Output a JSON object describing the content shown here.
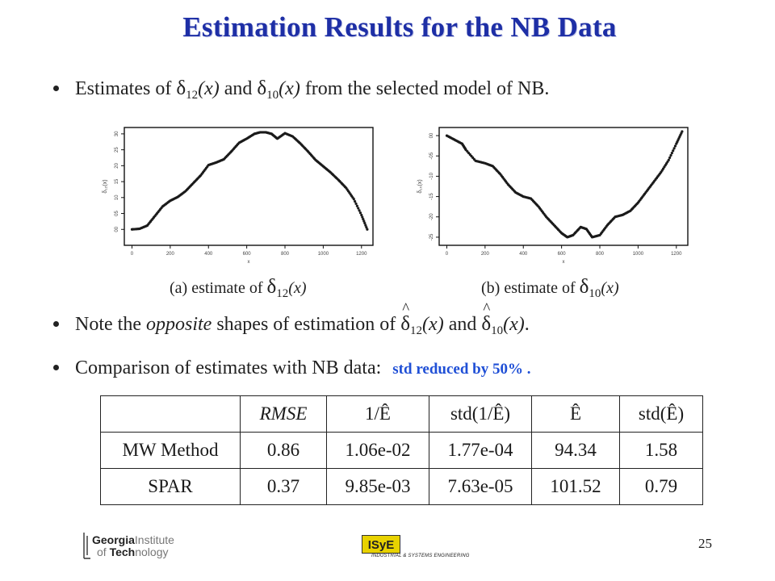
{
  "title": "Estimation Results for the NB Data",
  "bullets": {
    "b1": {
      "pre": "Estimates of ",
      "mid": " and ",
      "post": " from the selected model of NB."
    },
    "b2": {
      "pre": "Note the ",
      "em": "opposite",
      "mid": " shapes of estimation of ",
      "and": " and ",
      "post": "."
    },
    "b3": {
      "text": "Comparison of estimates with NB data:",
      "note": "std reduced by 50% ."
    }
  },
  "math": {
    "delta": "δ",
    "sub12": "12",
    "sub10": "10",
    "arg": "(x)"
  },
  "captions": {
    "a_prefix": "(a) estimate of ",
    "b_prefix": "(b) estimate of "
  },
  "chart_data": [
    {
      "type": "scatter",
      "title": "",
      "xlabel": "x",
      "ylabel": "δ₁₂(x)",
      "xlim": [
        -40,
        1260
      ],
      "ylim": [
        -0.5,
        3.2
      ],
      "xticks": [
        "0",
        "200",
        "400",
        "600",
        "800",
        "1000",
        "1200"
      ],
      "yticks": [
        "00",
        "05",
        "10",
        "15",
        "20",
        "25",
        "30"
      ],
      "x": [
        0,
        40,
        80,
        120,
        160,
        200,
        240,
        280,
        320,
        360,
        400,
        440,
        480,
        520,
        560,
        600,
        640,
        670,
        700,
        730,
        760,
        800,
        840,
        880,
        920,
        960,
        1000,
        1040,
        1080,
        1120,
        1160,
        1200,
        1230
      ],
      "y": [
        0.0,
        0.02,
        0.12,
        0.42,
        0.72,
        0.9,
        1.02,
        1.2,
        1.45,
        1.7,
        2.02,
        2.1,
        2.2,
        2.45,
        2.72,
        2.85,
        3.0,
        3.05,
        3.05,
        3.0,
        2.85,
        3.02,
        2.92,
        2.7,
        2.45,
        2.18,
        1.98,
        1.78,
        1.55,
        1.3,
        0.95,
        0.45,
        0.0
      ]
    },
    {
      "type": "scatter",
      "title": "",
      "xlabel": "x",
      "ylabel": "δ₁₀(x)",
      "xlim": [
        -40,
        1260
      ],
      "ylim": [
        -2.7,
        0.2
      ],
      "xticks": [
        "0",
        "200",
        "400",
        "600",
        "800",
        "1000",
        "1200"
      ],
      "yticks": [
        "00",
        "-05",
        "-10",
        "-15",
        "-20",
        "-25"
      ],
      "x": [
        0,
        40,
        80,
        100,
        150,
        200,
        240,
        280,
        320,
        360,
        400,
        440,
        480,
        520,
        560,
        600,
        630,
        660,
        700,
        730,
        760,
        800,
        840,
        880,
        920,
        960,
        1000,
        1040,
        1080,
        1120,
        1160,
        1200,
        1230
      ],
      "y": [
        0.0,
        -0.1,
        -0.2,
        -0.35,
        -0.62,
        -0.68,
        -0.75,
        -0.95,
        -1.2,
        -1.4,
        -1.5,
        -1.55,
        -1.75,
        -2.0,
        -2.2,
        -2.4,
        -2.5,
        -2.45,
        -2.25,
        -2.3,
        -2.5,
        -2.45,
        -2.2,
        -2.0,
        -1.95,
        -1.85,
        -1.65,
        -1.4,
        -1.15,
        -0.9,
        -0.6,
        -0.2,
        0.1
      ]
    }
  ],
  "table": {
    "headers": [
      "",
      "RMSE",
      "1/Ê",
      "std(1/Ê)",
      "Ê",
      "std(Ê)"
    ],
    "rows": [
      [
        "MW Method",
        "0.86",
        "1.06e-02",
        "1.77e-04",
        "94.34",
        "1.58"
      ],
      [
        "SPAR",
        "0.37",
        "9.85e-03",
        "7.63e-05",
        "101.52",
        "0.79"
      ]
    ]
  },
  "footer": {
    "gt_line1a": "Georgia",
    "gt_line1b": "Institute",
    "gt_line2a": "of ",
    "gt_line2b": "Tech",
    "gt_line2c": "nology",
    "isye_logo": "ISyE",
    "isye_sub": "INDUSTRIAL & SYSTEMS ENGINEERING",
    "page_number": "25"
  }
}
